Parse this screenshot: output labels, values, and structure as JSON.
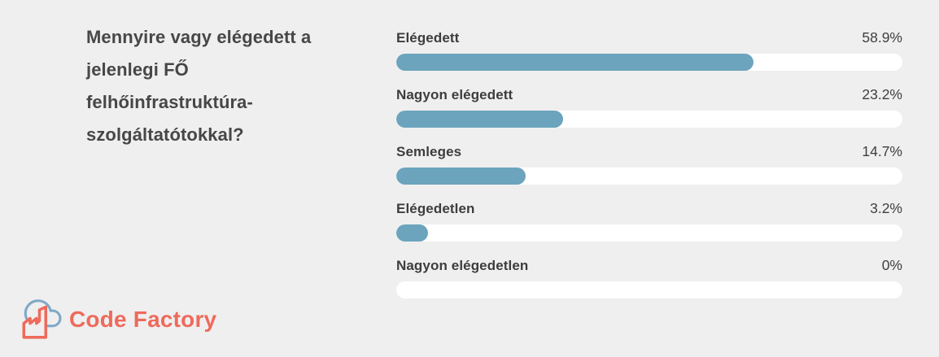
{
  "page": {
    "background_color": "#efefef"
  },
  "question": {
    "full_text": "Mennyire vagy elégedett a jelenlegi FŐ felhőinfrastruktúra-szolgáltatótokkal?",
    "lines": [
      "Mennyire vagy elégedett a",
      "jelenlegi FŐ",
      "felhőinfrastruktúra-",
      "szolgáltatótokkal?"
    ]
  },
  "chart_data": {
    "type": "bar",
    "orientation": "horizontal",
    "title": "Mennyire vagy elégedett a jelenlegi FŐ felhőinfrastruktúra-szolgáltatótokkal?",
    "categories": [
      "Elégedett",
      "Nagyon elégedett",
      "Semleges",
      "Elégedetlen",
      "Nagyon elégedetlen"
    ],
    "values": [
      58.9,
      23.2,
      14.7,
      3.2,
      0
    ],
    "value_labels": [
      "58.9%",
      "23.2%",
      "14.7%",
      "3.2%",
      "0%"
    ],
    "xlim": [
      0,
      100
    ],
    "grid": false,
    "legend": false,
    "bar_color": "#6ba4bc",
    "track_color": "#ffffff",
    "bar_fill_fractions": [
      0.706,
      0.33,
      0.256,
      0.063,
      0
    ]
  },
  "branding": {
    "logo_text": "Code Factory",
    "logo_text_color": "#ee6a5b",
    "factory_icon_color": "#ee6a5b",
    "cloud_icon_color": "#7fa9c6"
  }
}
